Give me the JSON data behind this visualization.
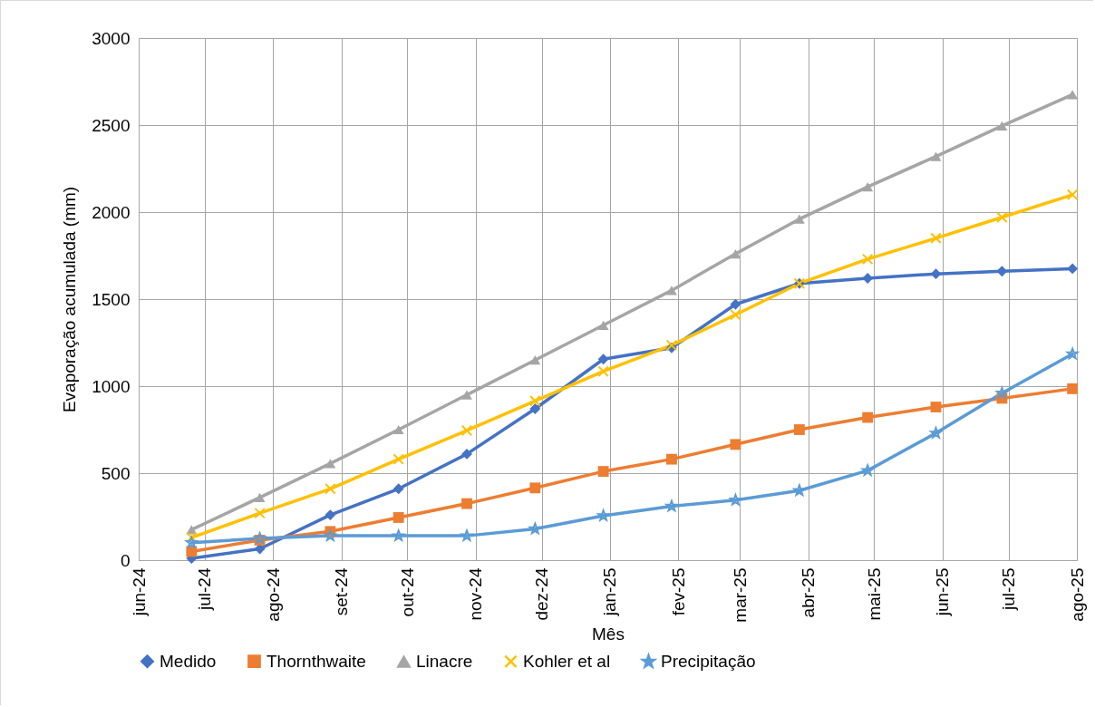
{
  "chart_data": {
    "type": "line",
    "xlabel": "Mês",
    "ylabel": "Evaporação acumulada (mm)",
    "x": [
      "2024-06-25",
      "2024-07-26",
      "2024-08-27",
      "2024-09-27",
      "2024-10-28",
      "2024-11-28",
      "2024-12-29",
      "2025-01-29",
      "2025-02-27",
      "2025-03-28",
      "2025-04-28",
      "2025-05-29",
      "2025-06-28",
      "2025-07-30"
    ],
    "xlim": [
      "2024-06-01",
      "2025-08-01"
    ],
    "xticks": [
      {
        "value": "2024-06-01",
        "label": "jun-24"
      },
      {
        "value": "2024-07-01",
        "label": "jul-24"
      },
      {
        "value": "2024-08-01",
        "label": "ago-24"
      },
      {
        "value": "2024-09-01",
        "label": "set-24"
      },
      {
        "value": "2024-10-01",
        "label": "out-24"
      },
      {
        "value": "2024-11-01",
        "label": "nov-24"
      },
      {
        "value": "2024-12-01",
        "label": "dez-24"
      },
      {
        "value": "2025-01-01",
        "label": "jan-25"
      },
      {
        "value": "2025-02-01",
        "label": "fev-25"
      },
      {
        "value": "2025-03-01",
        "label": "mar-25"
      },
      {
        "value": "2025-04-01",
        "label": "abr-25"
      },
      {
        "value": "2025-05-01",
        "label": "mai-25"
      },
      {
        "value": "2025-06-01",
        "label": "jun-25"
      },
      {
        "value": "2025-07-01",
        "label": "jul-25"
      },
      {
        "value": "2025-08-01",
        "label": "ago-25"
      }
    ],
    "ylim": [
      0,
      3000
    ],
    "yticks": [
      0,
      500,
      1000,
      1500,
      2000,
      2500,
      3000
    ],
    "grid": true,
    "legend": "bottom",
    "series": [
      {
        "name": "Medido",
        "color": "#4472c4",
        "marker": "diamond",
        "values": [
          10,
          65,
          260,
          410,
          610,
          870,
          1155,
          1220,
          1470,
          1590,
          1620,
          1645,
          1660,
          1675
        ]
      },
      {
        "name": "Thornthwaite",
        "color": "#ed7d31",
        "marker": "square",
        "values": [
          50,
          115,
          165,
          245,
          325,
          415,
          510,
          580,
          665,
          750,
          820,
          880,
          930,
          985
        ]
      },
      {
        "name": "Linacre",
        "color": "#a5a5a5",
        "marker": "triangle",
        "values": [
          175,
          360,
          555,
          750,
          950,
          1150,
          1350,
          1550,
          1760,
          1960,
          2145,
          2320,
          2495,
          2675
        ]
      },
      {
        "name": "Kohler et al",
        "color": "#ffc000",
        "marker": "cross",
        "values": [
          130,
          270,
          410,
          580,
          745,
          915,
          1085,
          1235,
          1410,
          1590,
          1730,
          1850,
          1970,
          2100
        ]
      },
      {
        "name": "Precipitação",
        "color": "#5b9bd5",
        "marker": "star",
        "values": [
          100,
          125,
          140,
          140,
          140,
          180,
          255,
          310,
          345,
          400,
          515,
          730,
          960,
          1185
        ]
      }
    ]
  }
}
